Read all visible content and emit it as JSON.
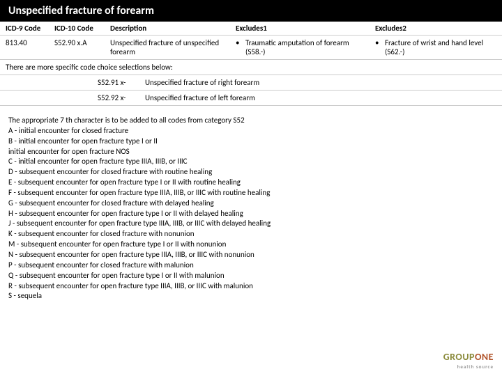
{
  "title": "Unspecified fracture of forearm",
  "headers": {
    "icd9": "ICD-9 Code",
    "icd10": "ICD-10 Code",
    "desc": "Description",
    "exc1": "Excludes1",
    "exc2": "Excludes2"
  },
  "row": {
    "icd9": "813.40",
    "icd10": "S52.90 x.A",
    "desc": "Unspecified fracture of unspecified forearm",
    "exc1_bullet": "•",
    "exc1": "Traumatic amputation of forearm (S58.-)",
    "exc2_bullet": "•",
    "exc2": "Fracture of wrist and hand level (S62.-)"
  },
  "note": "There are more specific code choice selections below:",
  "sub": [
    {
      "code": "S52.91 x-",
      "desc": "Unspecified fracture of right forearm"
    },
    {
      "code": "S52.92 x-",
      "desc": "Unspecified fracture of left forearm"
    }
  ],
  "char_intro": "The appropriate 7 th character is to be added to all codes from category S52",
  "chars": [
    "A - initial encounter for closed fracture",
    "B - initial encounter for open fracture type I or II",
    "initial encounter for open fracture NOS",
    "C - initial encounter for open fracture type IIIA, IIIB, or IIIC",
    "D - subsequent encounter for closed fracture with routine healing",
    "E - subsequent encounter for open fracture type I or II with routine healing",
    "F - subsequent encounter for open fracture type IIIA, IIIB, or IIIC with routine healing",
    "G - subsequent encounter for closed fracture with delayed healing",
    "H - subsequent encounter for open fracture type I or II with delayed healing",
    "J - subsequent encounter for open fracture type IIIA, IIIB, or IIIC with delayed healing",
    "K - subsequent encounter for closed fracture with nonunion",
    "M - subsequent encounter for open fracture type I or II with nonunion",
    "N - subsequent encounter for open fracture type IIIA, IIIB, or IIIC with nonunion",
    "P - subsequent encounter for closed fracture with malunion",
    "Q - subsequent encounter for open fracture type I or II with malunion",
    "R - subsequent encounter for open fracture type IIIA, IIIB, or IIIC with malunion",
    "S - sequela"
  ],
  "logo": {
    "part1": "GROUP",
    "part2": "ONE",
    "sub": "health source"
  }
}
